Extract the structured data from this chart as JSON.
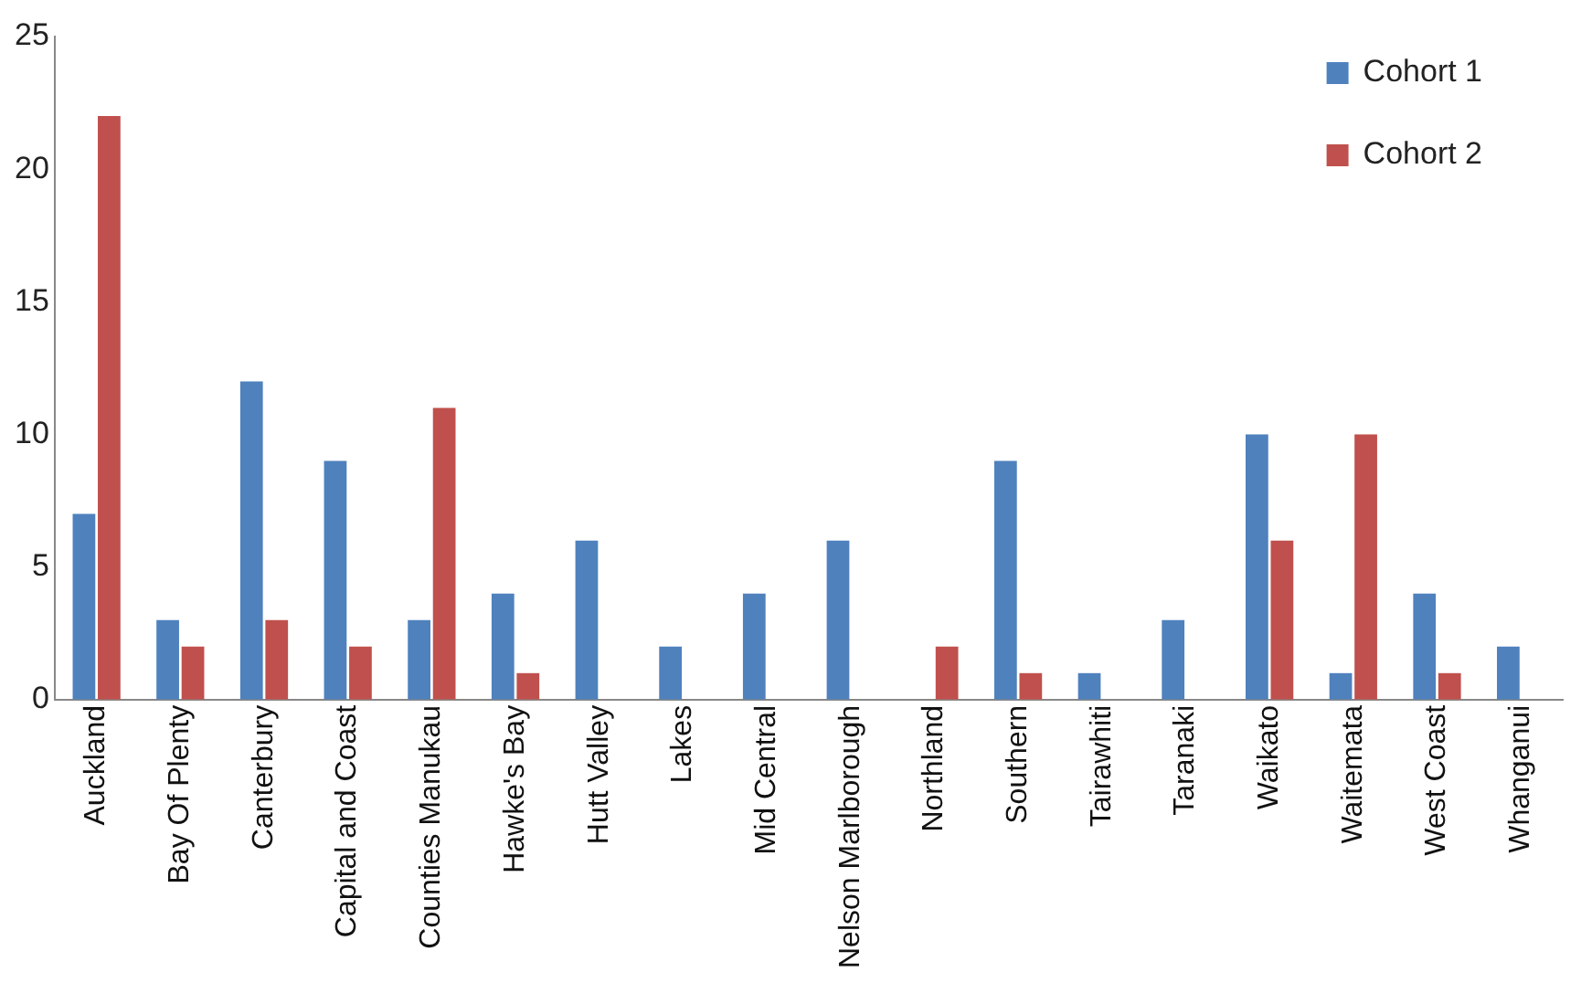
{
  "chart_data": {
    "type": "bar",
    "categories": [
      "Auckland",
      "Bay Of Plenty",
      "Canterbury",
      "Capital and Coast",
      "Counties Manukau",
      "Hawke's Bay",
      "Hutt Valley",
      "Lakes",
      "Mid Central",
      "Nelson Marlborough",
      "Northland",
      "Southern",
      "Tairawhiti",
      "Taranaki",
      "Waikato",
      "Waitemata",
      "West Coast",
      "Whanganui"
    ],
    "series": [
      {
        "name": "Cohort 1",
        "color": "#4f81bd",
        "values": [
          7,
          3,
          12,
          9,
          3,
          4,
          6,
          2,
          4,
          6,
          0,
          9,
          1,
          3,
          10,
          1,
          4,
          2
        ]
      },
      {
        "name": "Cohort 2",
        "color": "#c0504d",
        "values": [
          22,
          2,
          3,
          2,
          11,
          1,
          0,
          0,
          0,
          0,
          2,
          1,
          0,
          0,
          6,
          10,
          1,
          0
        ]
      }
    ],
    "ylim": [
      0,
      25
    ],
    "yticks": [
      0,
      5,
      10,
      15,
      20,
      25
    ],
    "grid": false,
    "legend": "top right"
  }
}
